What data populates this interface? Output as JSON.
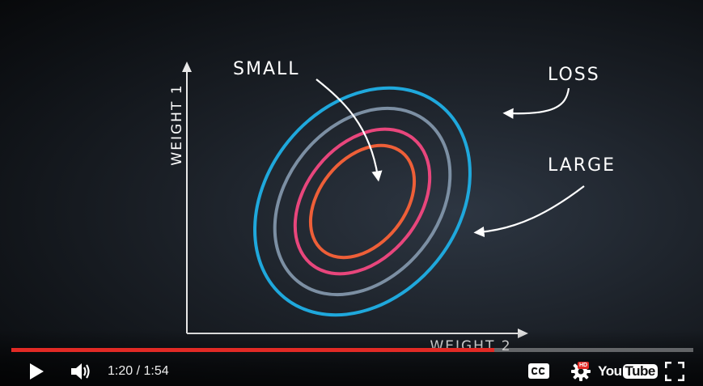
{
  "video": {
    "axis_y_label": "WEIGHT 1",
    "axis_x_label": "WEIGHT 2",
    "annotation_small": "SMALL",
    "annotation_loss": "LOSS",
    "annotation_large": "LARGE",
    "contour_colors": [
      "#1fa8dc",
      "#7c8fa3",
      "#e8467c",
      "#ee5f38"
    ]
  },
  "player": {
    "progress_fraction": 0.7087,
    "current_time": "1:20",
    "time_separator": " / ",
    "duration": "1:54",
    "accent_color": "#e22a25",
    "hd_badge": "HD",
    "logo_you": "You",
    "logo_tube": "Tube",
    "icons": {
      "play": "play-icon",
      "volume": "volume-icon",
      "captions": "captions-icon",
      "settings": "settings-icon",
      "fullscreen": "fullscreen-icon"
    }
  }
}
